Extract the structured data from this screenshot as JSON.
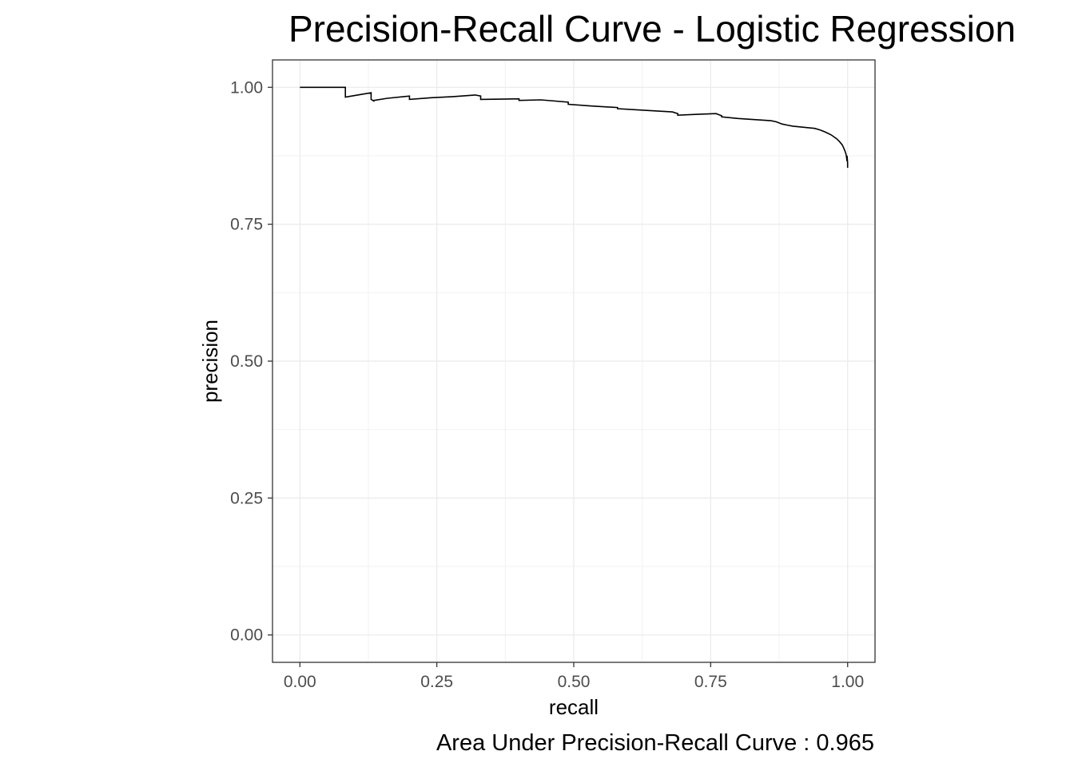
{
  "chart_data": {
    "type": "line",
    "title": "Precision-Recall Curve - Logistic Regression",
    "xlabel": "recall",
    "ylabel": "precision",
    "caption": "Area Under Precision-Recall Curve : 0.965",
    "xlim": [
      -0.05,
      1.05
    ],
    "ylim": [
      -0.05,
      1.05
    ],
    "x_ticks": [
      0.0,
      0.25,
      0.5,
      0.75,
      1.0
    ],
    "x_tick_labels": [
      "0.00",
      "0.25",
      "0.50",
      "0.75",
      "1.00"
    ],
    "y_ticks": [
      0.0,
      0.25,
      0.5,
      0.75,
      1.0
    ],
    "y_tick_labels": [
      "0.00",
      "0.25",
      "0.50",
      "0.75",
      "1.00"
    ],
    "grid": true,
    "line_color": "#000000",
    "series": [
      {
        "x": [
          0.0,
          0.083,
          0.083,
          0.1,
          0.13,
          0.13,
          0.135,
          0.135,
          0.16,
          0.2,
          0.2,
          0.24,
          0.28,
          0.32,
          0.33,
          0.33,
          0.4,
          0.4,
          0.44,
          0.49,
          0.49,
          0.53,
          0.58,
          0.58,
          0.63,
          0.68,
          0.69,
          0.69,
          0.73,
          0.76,
          0.77,
          0.77,
          0.8,
          0.83,
          0.86,
          0.87,
          0.88,
          0.89,
          0.9,
          0.92,
          0.94,
          0.95,
          0.96,
          0.97,
          0.98,
          0.985,
          0.99,
          0.993,
          0.995,
          0.997,
          0.998,
          0.999,
          0.999,
          1.0,
          1.0
        ],
        "y": [
          1.0,
          1.0,
          0.982,
          0.985,
          0.99,
          0.978,
          0.975,
          0.976,
          0.98,
          0.984,
          0.978,
          0.981,
          0.983,
          0.986,
          0.984,
          0.978,
          0.979,
          0.976,
          0.977,
          0.973,
          0.969,
          0.966,
          0.963,
          0.961,
          0.958,
          0.955,
          0.952,
          0.949,
          0.951,
          0.952,
          0.948,
          0.946,
          0.943,
          0.941,
          0.939,
          0.937,
          0.933,
          0.931,
          0.929,
          0.927,
          0.925,
          0.922,
          0.918,
          0.913,
          0.906,
          0.901,
          0.895,
          0.889,
          0.884,
          0.878,
          0.872,
          0.865,
          0.875,
          0.862,
          0.853
        ]
      }
    ]
  }
}
